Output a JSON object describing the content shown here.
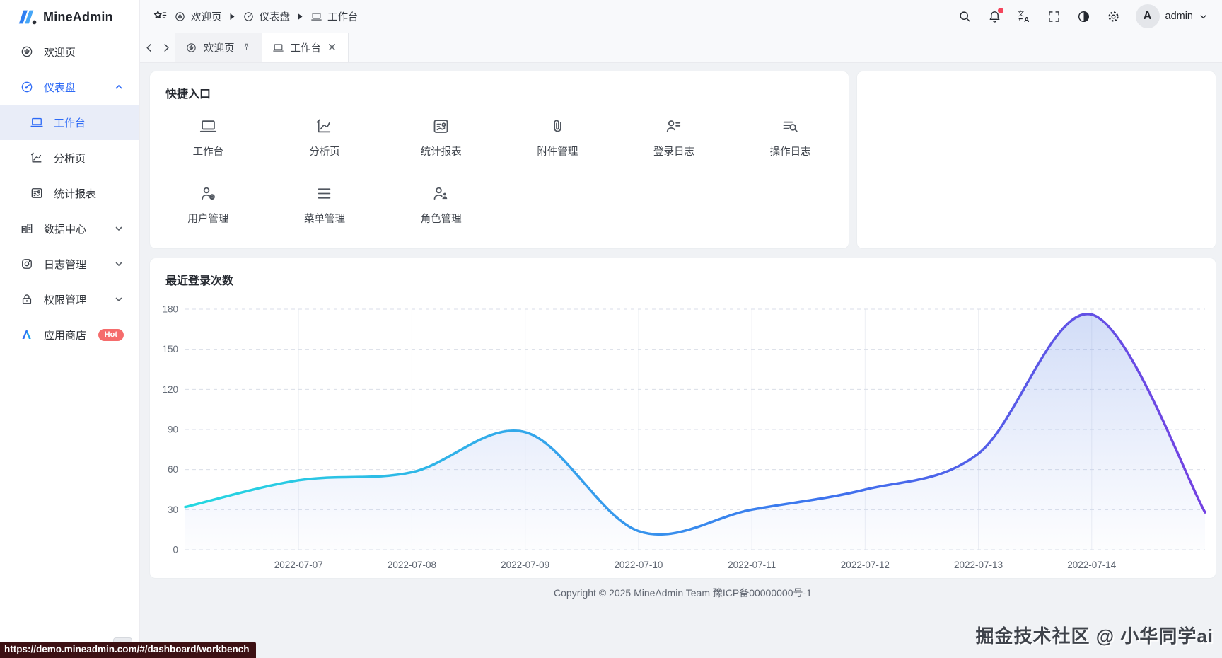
{
  "app": {
    "name": "MineAdmin"
  },
  "sidebar": {
    "items": [
      {
        "label": "欢迎页"
      },
      {
        "label": "仪表盘"
      },
      {
        "label": "工作台"
      },
      {
        "label": "分析页"
      },
      {
        "label": "统计报表"
      },
      {
        "label": "数据中心"
      },
      {
        "label": "日志管理"
      },
      {
        "label": "权限管理"
      },
      {
        "label": "应用商店",
        "badge": "Hot"
      }
    ]
  },
  "header": {
    "breadcrumb": [
      {
        "label": "欢迎页"
      },
      {
        "label": "仪表盘"
      },
      {
        "label": "工作台"
      }
    ],
    "user": "admin",
    "avatar_initial": "A"
  },
  "tabs": [
    {
      "label": "欢迎页",
      "pinned": true
    },
    {
      "label": "工作台",
      "active": true,
      "closable": true
    }
  ],
  "quick_entry": {
    "title": "快捷入口",
    "items": [
      "工作台",
      "分析页",
      "统计报表",
      "附件管理",
      "登录日志",
      "操作日志",
      "用户管理",
      "菜单管理",
      "角色管理"
    ]
  },
  "chart_data": {
    "type": "line",
    "title": "最近登录次数",
    "categories": [
      "2022-07-07",
      "2022-07-08",
      "2022-07-09",
      "2022-07-10",
      "2022-07-11",
      "2022-07-12",
      "2022-07-13",
      "2022-07-14"
    ],
    "values": [
      52,
      58,
      88,
      14,
      30,
      45,
      72,
      176
    ],
    "edge_values": [
      32,
      28
    ],
    "yticks": [
      0,
      30,
      60,
      90,
      120,
      150,
      180
    ],
    "ylim": [
      0,
      180
    ],
    "xlabel": "",
    "ylabel": "",
    "smooth": true,
    "area": true,
    "grid": "horizontal-dashed, vertical-solid",
    "legend": "none",
    "line_gradient": [
      "#24d8e0",
      "#35a0ec",
      "#3c74ee",
      "#7341e2"
    ]
  },
  "footer": {
    "copyright": "Copyright © 2025 MineAdmin Team 豫ICP备00000000号-1"
  },
  "watermark": "掘金技术社区 @ 小华同学ai",
  "status_url": "https://demo.mineadmin.com/#/dashboard/workbench",
  "colors": {
    "accent": "#2d6af6",
    "active_item_bg": "#e9edf8",
    "hot_badge": "#f56c6c",
    "notification_dot": "#f5455c",
    "status_bar_bg": "#3d1114",
    "content_bg": "#f0f2f5"
  }
}
